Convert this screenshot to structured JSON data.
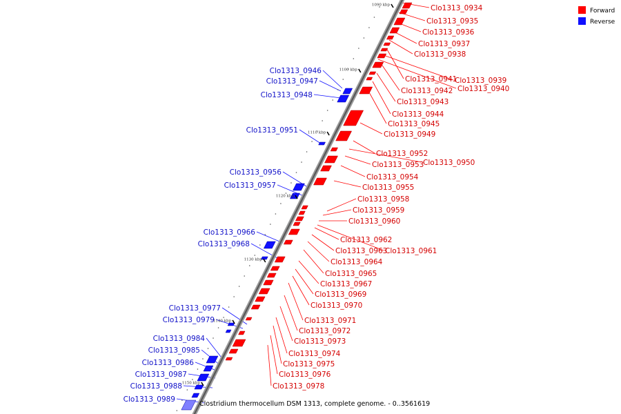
{
  "caption": "Clostridium thermocellum DSM 1313, complete genome. - 0..3561619",
  "legend": [
    {
      "label": "Forward",
      "color": "#ff0000"
    },
    {
      "label": "Reverse",
      "color": "#1010ff"
    }
  ],
  "ticks": [
    "1090 kbp",
    "1100 kbp",
    "1110 kbp",
    "1120 kbp",
    "1130 kbp",
    "1140 kbp",
    "1150 kbp"
  ],
  "forward_genes": [
    "Clo1313_0934",
    "Clo1313_0935",
    "Clo1313_0936",
    "Clo1313_0937",
    "Clo1313_0938",
    "Clo1313_0941",
    "Clo1313_0939",
    "Clo1313_0942",
    "Clo1313_0940",
    "Clo1313_0943",
    "Clo1313_0944",
    "Clo1313_0945",
    "Clo1313_0949",
    "Clo1313_0952",
    "Clo1313_0953",
    "Clo1313_0950",
    "Clo1313_0954",
    "Clo1313_0955",
    "Clo1313_0958",
    "Clo1313_0959",
    "Clo1313_0960",
    "Clo1313_0962",
    "Clo1313_0963",
    "Clo1313_0961",
    "Clo1313_0964",
    "Clo1313_0965",
    "Clo1313_0967",
    "Clo1313_0969",
    "Clo1313_0970",
    "Clo1313_0971",
    "Clo1313_0972",
    "Clo1313_0973",
    "Clo1313_0974",
    "Clo1313_0975",
    "Clo1313_0976",
    "Clo1313_0978"
  ],
  "reverse_genes": [
    "Clo1313_0946",
    "Clo1313_0947",
    "Clo1313_0948",
    "Clo1313_0951",
    "Clo1313_0956",
    "Clo1313_0957",
    "Clo1313_0966",
    "Clo1313_0968",
    "Clo1313_0977",
    "Clo1313_0979",
    "Clo1313_0984",
    "Clo1313_0985",
    "Clo1313_0986",
    "Clo1313_0987",
    "Clo1313_0988",
    "Clo1313_0989"
  ]
}
